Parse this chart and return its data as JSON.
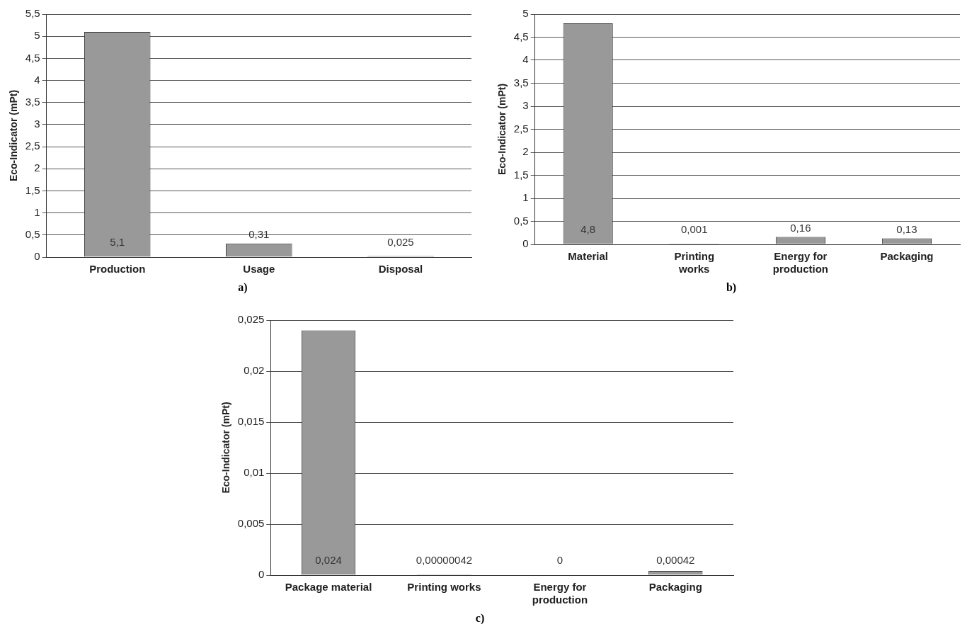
{
  "chart_data": [
    {
      "type": "bar",
      "categories": [
        "Production",
        "Usage",
        "Disposal"
      ],
      "values": [
        5.1,
        0.31,
        0.025
      ],
      "color": "#999999",
      "ylabel": "Eco-Indicator (mPt)",
      "ylim": [
        0,
        5.5
      ],
      "yticks": [
        0,
        {
          "value": 0.5,
          "label": "0,5"
        },
        1,
        {
          "value": 1.5,
          "label": "1,5"
        },
        2,
        {
          "value": 2.5,
          "label": "2,5"
        },
        3,
        {
          "value": 3.5,
          "label": "3,5"
        },
        4,
        {
          "value": 4.5,
          "label": "4,5"
        },
        5,
        {
          "value": 5.5,
          "label": "5,5"
        }
      ],
      "grid": "y",
      "value_labels": [
        "5,1",
        "0,31",
        "0,025"
      ],
      "annotations": [
        "a)"
      ]
    },
    {
      "type": "bar",
      "categories": [
        "Material",
        "Printing works",
        "Energy for production",
        "Packaging"
      ],
      "values": [
        4.8,
        0.001,
        0.16,
        0.13
      ],
      "color": "#999999",
      "ylabel": "Eco-Indicator (mPt)",
      "ylim": [
        0,
        5
      ],
      "yticks": [
        0,
        {
          "value": 0.5,
          "label": "0,5"
        },
        1,
        {
          "value": 1.5,
          "label": "1,5"
        },
        2,
        {
          "value": 2.5,
          "label": "2,5"
        },
        3,
        {
          "value": 3.5,
          "label": "3,5"
        },
        4,
        {
          "value": 4.5,
          "label": "4,5"
        },
        5
      ],
      "grid": "y",
      "value_labels": [
        "4,8",
        "0,001",
        "0,16",
        "0,13"
      ],
      "annotations": [
        "b)"
      ]
    },
    {
      "type": "bar",
      "categories": [
        "Package material",
        "Printing works",
        "Energy for production",
        "Packaging"
      ],
      "values": [
        0.024,
        4.2e-07,
        0,
        0.00042
      ],
      "color": "#999999",
      "ylabel": "Eco-Indicator (mPt)",
      "ylim": [
        0,
        0.025
      ],
      "yticks": [
        0,
        {
          "value": 0.005,
          "label": "0,005"
        },
        {
          "value": 0.01,
          "label": "0,01"
        },
        {
          "value": 0.015,
          "label": "0,015"
        },
        {
          "value": 0.02,
          "label": "0,02"
        },
        {
          "value": 0.025,
          "label": "0,025"
        }
      ],
      "grid": "y",
      "value_labels": [
        "0,024",
        "0,00000042",
        "0",
        "0,00042"
      ],
      "annotations": [
        "c)"
      ]
    }
  ]
}
